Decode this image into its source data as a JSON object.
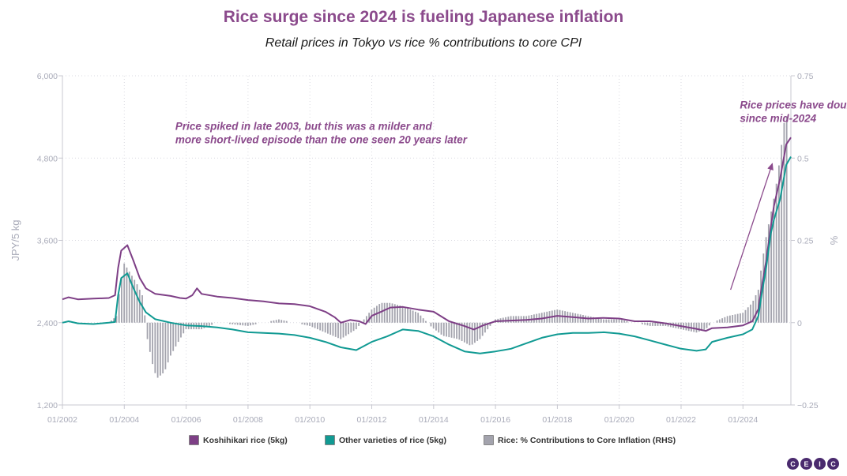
{
  "title": "Rice surge since 2024 is fueling Japanese inflation",
  "subtitle": "Retail prices in Tokyo vs rice % contributions to core CPI",
  "logo_letters": [
    "C",
    "E",
    "I",
    "C"
  ],
  "colors": {
    "kosh": "#7e3f86",
    "other": "#119a93",
    "bars": "#a3a3ad",
    "annot": "#8b4a8c"
  },
  "chart_data": {
    "type": "line",
    "left_axis": {
      "label": "JPY/5 kg",
      "min": 1200,
      "max": 6000,
      "ticks": [
        {
          "v": 1200,
          "label": "1,200"
        },
        {
          "v": 2400,
          "label": "2,400"
        },
        {
          "v": 3600,
          "label": "3,600"
        },
        {
          "v": 4800,
          "label": "4,800"
        },
        {
          "v": 6000,
          "label": "6,000"
        }
      ]
    },
    "right_axis": {
      "label": "%",
      "min": -0.25,
      "max": 0.75,
      "ticks": [
        {
          "v": -0.25,
          "label": "−0.25"
        },
        {
          "v": 0,
          "label": "0"
        },
        {
          "v": 0.25,
          "label": "0.25"
        },
        {
          "v": 0.5,
          "label": "0.5"
        },
        {
          "v": 0.75,
          "label": "0.75"
        }
      ]
    },
    "x_axis": {
      "min": 2002.0,
      "max": 2025.55,
      "ticks": [
        {
          "v": 2002,
          "label": "01/2002"
        },
        {
          "v": 2004,
          "label": "01/2004"
        },
        {
          "v": 2006,
          "label": "01/2006"
        },
        {
          "v": 2008,
          "label": "01/2008"
        },
        {
          "v": 2010,
          "label": "01/2010"
        },
        {
          "v": 2012,
          "label": "01/2012"
        },
        {
          "v": 2014,
          "label": "01/2014"
        },
        {
          "v": 2016,
          "label": "01/2016"
        },
        {
          "v": 2018,
          "label": "01/2018"
        },
        {
          "v": 2020,
          "label": "01/2020"
        },
        {
          "v": 2022,
          "label": "01/2022"
        },
        {
          "v": 2024,
          "label": "01/2024"
        }
      ]
    },
    "grid": true,
    "legend_position": "bottom",
    "series": [
      {
        "name": "Koshihikari rice (5kg)",
        "axis": "left",
        "kind": "line",
        "color": "#7e3f86",
        "points": [
          [
            2002.0,
            2740
          ],
          [
            2002.2,
            2770
          ],
          [
            2002.5,
            2740
          ],
          [
            2003.0,
            2750
          ],
          [
            2003.5,
            2760
          ],
          [
            2003.7,
            2800
          ],
          [
            2003.8,
            3200
          ],
          [
            2003.9,
            3450
          ],
          [
            2004.1,
            3530
          ],
          [
            2004.3,
            3300
          ],
          [
            2004.5,
            3050
          ],
          [
            2004.7,
            2900
          ],
          [
            2005.0,
            2820
          ],
          [
            2005.5,
            2790
          ],
          [
            2005.8,
            2760
          ],
          [
            2006.0,
            2750
          ],
          [
            2006.2,
            2800
          ],
          [
            2006.35,
            2900
          ],
          [
            2006.5,
            2820
          ],
          [
            2007.0,
            2780
          ],
          [
            2007.5,
            2760
          ],
          [
            2008.0,
            2730
          ],
          [
            2008.5,
            2710
          ],
          [
            2009.0,
            2680
          ],
          [
            2009.5,
            2670
          ],
          [
            2010.0,
            2640
          ],
          [
            2010.5,
            2560
          ],
          [
            2010.8,
            2480
          ],
          [
            2011.0,
            2400
          ],
          [
            2011.3,
            2440
          ],
          [
            2011.6,
            2420
          ],
          [
            2011.8,
            2380
          ],
          [
            2012.0,
            2500
          ],
          [
            2012.3,
            2560
          ],
          [
            2012.6,
            2620
          ],
          [
            2013.0,
            2630
          ],
          [
            2013.5,
            2590
          ],
          [
            2014.0,
            2560
          ],
          [
            2014.5,
            2420
          ],
          [
            2015.0,
            2350
          ],
          [
            2015.3,
            2300
          ],
          [
            2015.6,
            2360
          ],
          [
            2016.0,
            2420
          ],
          [
            2016.5,
            2430
          ],
          [
            2017.0,
            2440
          ],
          [
            2017.5,
            2460
          ],
          [
            2018.0,
            2500
          ],
          [
            2018.5,
            2480
          ],
          [
            2019.0,
            2460
          ],
          [
            2019.5,
            2470
          ],
          [
            2020.0,
            2460
          ],
          [
            2020.5,
            2420
          ],
          [
            2021.0,
            2420
          ],
          [
            2021.5,
            2390
          ],
          [
            2022.0,
            2350
          ],
          [
            2022.5,
            2310
          ],
          [
            2022.8,
            2280
          ],
          [
            2023.0,
            2320
          ],
          [
            2023.5,
            2330
          ],
          [
            2024.0,
            2360
          ],
          [
            2024.3,
            2420
          ],
          [
            2024.5,
            2600
          ],
          [
            2024.6,
            2900
          ],
          [
            2024.75,
            3300
          ],
          [
            2024.9,
            3800
          ],
          [
            2025.0,
            4100
          ],
          [
            2025.2,
            4500
          ],
          [
            2025.4,
            5000
          ],
          [
            2025.55,
            5100
          ]
        ]
      },
      {
        "name": "Other varieties of rice (5kg)",
        "axis": "left",
        "kind": "line",
        "color": "#119a93",
        "points": [
          [
            2002.0,
            2400
          ],
          [
            2002.2,
            2420
          ],
          [
            2002.5,
            2390
          ],
          [
            2003.0,
            2380
          ],
          [
            2003.5,
            2400
          ],
          [
            2003.7,
            2410
          ],
          [
            2003.8,
            2800
          ],
          [
            2003.9,
            3050
          ],
          [
            2004.1,
            3120
          ],
          [
            2004.3,
            2900
          ],
          [
            2004.5,
            2700
          ],
          [
            2004.7,
            2550
          ],
          [
            2005.0,
            2450
          ],
          [
            2005.5,
            2400
          ],
          [
            2006.0,
            2360
          ],
          [
            2006.5,
            2350
          ],
          [
            2007.0,
            2330
          ],
          [
            2007.5,
            2300
          ],
          [
            2008.0,
            2260
          ],
          [
            2008.5,
            2250
          ],
          [
            2009.0,
            2240
          ],
          [
            2009.5,
            2220
          ],
          [
            2010.0,
            2180
          ],
          [
            2010.5,
            2120
          ],
          [
            2011.0,
            2040
          ],
          [
            2011.5,
            2000
          ],
          [
            2012.0,
            2120
          ],
          [
            2012.5,
            2200
          ],
          [
            2013.0,
            2300
          ],
          [
            2013.5,
            2280
          ],
          [
            2014.0,
            2200
          ],
          [
            2014.5,
            2080
          ],
          [
            2015.0,
            1980
          ],
          [
            2015.5,
            1950
          ],
          [
            2016.0,
            1980
          ],
          [
            2016.5,
            2020
          ],
          [
            2017.0,
            2100
          ],
          [
            2017.5,
            2180
          ],
          [
            2018.0,
            2230
          ],
          [
            2018.5,
            2250
          ],
          [
            2019.0,
            2250
          ],
          [
            2019.5,
            2260
          ],
          [
            2020.0,
            2240
          ],
          [
            2020.5,
            2200
          ],
          [
            2021.0,
            2140
          ],
          [
            2021.5,
            2080
          ],
          [
            2022.0,
            2020
          ],
          [
            2022.5,
            1990
          ],
          [
            2022.8,
            2010
          ],
          [
            2023.0,
            2120
          ],
          [
            2023.5,
            2180
          ],
          [
            2024.0,
            2230
          ],
          [
            2024.3,
            2300
          ],
          [
            2024.5,
            2500
          ],
          [
            2024.6,
            2800
          ],
          [
            2024.75,
            3200
          ],
          [
            2024.9,
            3700
          ],
          [
            2025.0,
            3900
          ],
          [
            2025.2,
            4200
          ],
          [
            2025.4,
            4700
          ],
          [
            2025.55,
            4820
          ]
        ]
      },
      {
        "name": "Rice: % Contributions to Core Inflation (RHS)",
        "axis": "right",
        "kind": "bar",
        "color": "#a3a3ad",
        "points": [
          [
            2002.0,
            0
          ],
          [
            2003.5,
            0
          ],
          [
            2003.75,
            0.02
          ],
          [
            2003.85,
            0.1
          ],
          [
            2004.0,
            0.18
          ],
          [
            2004.2,
            0.15
          ],
          [
            2004.4,
            0.12
          ],
          [
            2004.6,
            0.08
          ],
          [
            2004.75,
            -0.05
          ],
          [
            2004.9,
            -0.12
          ],
          [
            2005.05,
            -0.17
          ],
          [
            2005.3,
            -0.15
          ],
          [
            2005.5,
            -0.1
          ],
          [
            2005.8,
            -0.05
          ],
          [
            2006.0,
            -0.02
          ],
          [
            2006.5,
            -0.02
          ],
          [
            2007.0,
            0
          ],
          [
            2008.0,
            -0.01
          ],
          [
            2009.0,
            0.01
          ],
          [
            2009.5,
            0
          ],
          [
            2010.0,
            -0.01
          ],
          [
            2010.5,
            -0.03
          ],
          [
            2011.0,
            -0.05
          ],
          [
            2011.5,
            -0.02
          ],
          [
            2012.0,
            0.04
          ],
          [
            2012.3,
            0.06
          ],
          [
            2012.6,
            0.06
          ],
          [
            2013.0,
            0.05
          ],
          [
            2013.5,
            0.03
          ],
          [
            2013.9,
            -0.01
          ],
          [
            2014.3,
            -0.04
          ],
          [
            2014.8,
            -0.05
          ],
          [
            2015.2,
            -0.07
          ],
          [
            2015.5,
            -0.05
          ],
          [
            2016.0,
            0.01
          ],
          [
            2016.5,
            0.02
          ],
          [
            2017.0,
            0.02
          ],
          [
            2017.5,
            0.03
          ],
          [
            2018.0,
            0.04
          ],
          [
            2018.5,
            0.03
          ],
          [
            2019.0,
            0.02
          ],
          [
            2019.5,
            0.01
          ],
          [
            2020.0,
            0.01
          ],
          [
            2020.5,
            0
          ],
          [
            2021.0,
            -0.01
          ],
          [
            2021.5,
            -0.01
          ],
          [
            2022.0,
            -0.02
          ],
          [
            2022.5,
            -0.03
          ],
          [
            2022.8,
            -0.02
          ],
          [
            2023.0,
            0
          ],
          [
            2023.5,
            0.02
          ],
          [
            2024.0,
            0.03
          ],
          [
            2024.3,
            0.06
          ],
          [
            2024.5,
            0.1
          ],
          [
            2024.6,
            0.17
          ],
          [
            2024.75,
            0.26
          ],
          [
            2024.9,
            0.33
          ],
          [
            2025.05,
            0.4
          ],
          [
            2025.2,
            0.5
          ],
          [
            2025.35,
            0.62
          ],
          [
            2025.45,
            0.63
          ]
        ]
      }
    ],
    "annotations": [
      {
        "lines": [
          "Price spiked in late 2003, but this was a milder and",
          "more short-lived episode than the one seen 20 years later"
        ],
        "x": 2005.65,
        "y": 5210
      },
      {
        "lines": [
          "Rice prices have doubled",
          "since mid-2024"
        ],
        "x": 2023.9,
        "y": 5520
      }
    ],
    "arrow": {
      "from": [
        2023.6,
        2880
      ],
      "to": [
        2024.95,
        4720
      ]
    }
  }
}
